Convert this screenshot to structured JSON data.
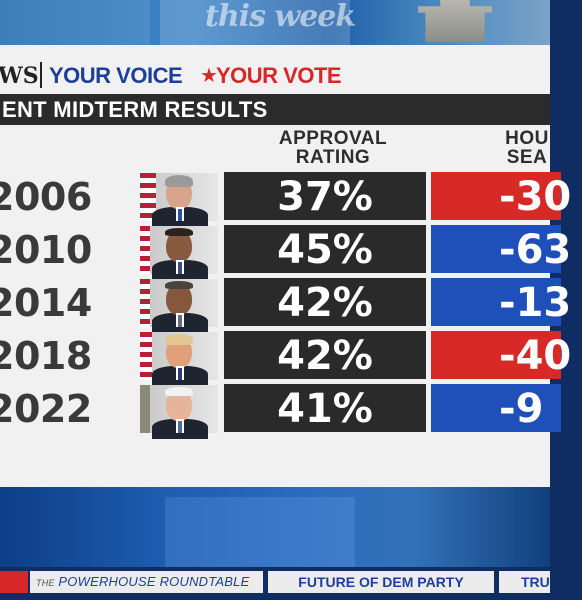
{
  "studio": {
    "logo_text": "this week"
  },
  "brand": {
    "network": "WS",
    "slogan_part1": "YOUR VOICE",
    "slogan_part2": "YOUR VOTE",
    "star_glyph": "★"
  },
  "title": "ENT MIDTERM RESULTS",
  "columns": {
    "approval_line1": "APPROVAL",
    "approval_line2": "RATING",
    "house_line1": "HOU",
    "house_line2": "SEA"
  },
  "rows": [
    {
      "year": "2006",
      "approval": "37%",
      "house_change": "-30",
      "house_color": "#d72a26",
      "president": "bush-portrait"
    },
    {
      "year": "2010",
      "approval": "45%",
      "house_change": "-63",
      "house_color": "#1f4fb8",
      "president": "obama-portrait"
    },
    {
      "year": "2014",
      "approval": "42%",
      "house_change": "-13",
      "house_color": "#1f4fb8",
      "president": "obama-portrait"
    },
    {
      "year": "2018",
      "approval": "42%",
      "house_change": "-40",
      "house_color": "#d72a26",
      "president": "trump-portrait"
    },
    {
      "year": "2022",
      "approval": "41%",
      "house_change": "-9",
      "house_color": "#1f4fb8",
      "president": "biden-portrait"
    }
  ],
  "ticker": {
    "item1_prefix": "THE",
    "item1_text": "POWERHOUSE ROUNDTABLE",
    "item2": "FUTURE OF DEM PARTY",
    "item3": "TRU"
  }
}
